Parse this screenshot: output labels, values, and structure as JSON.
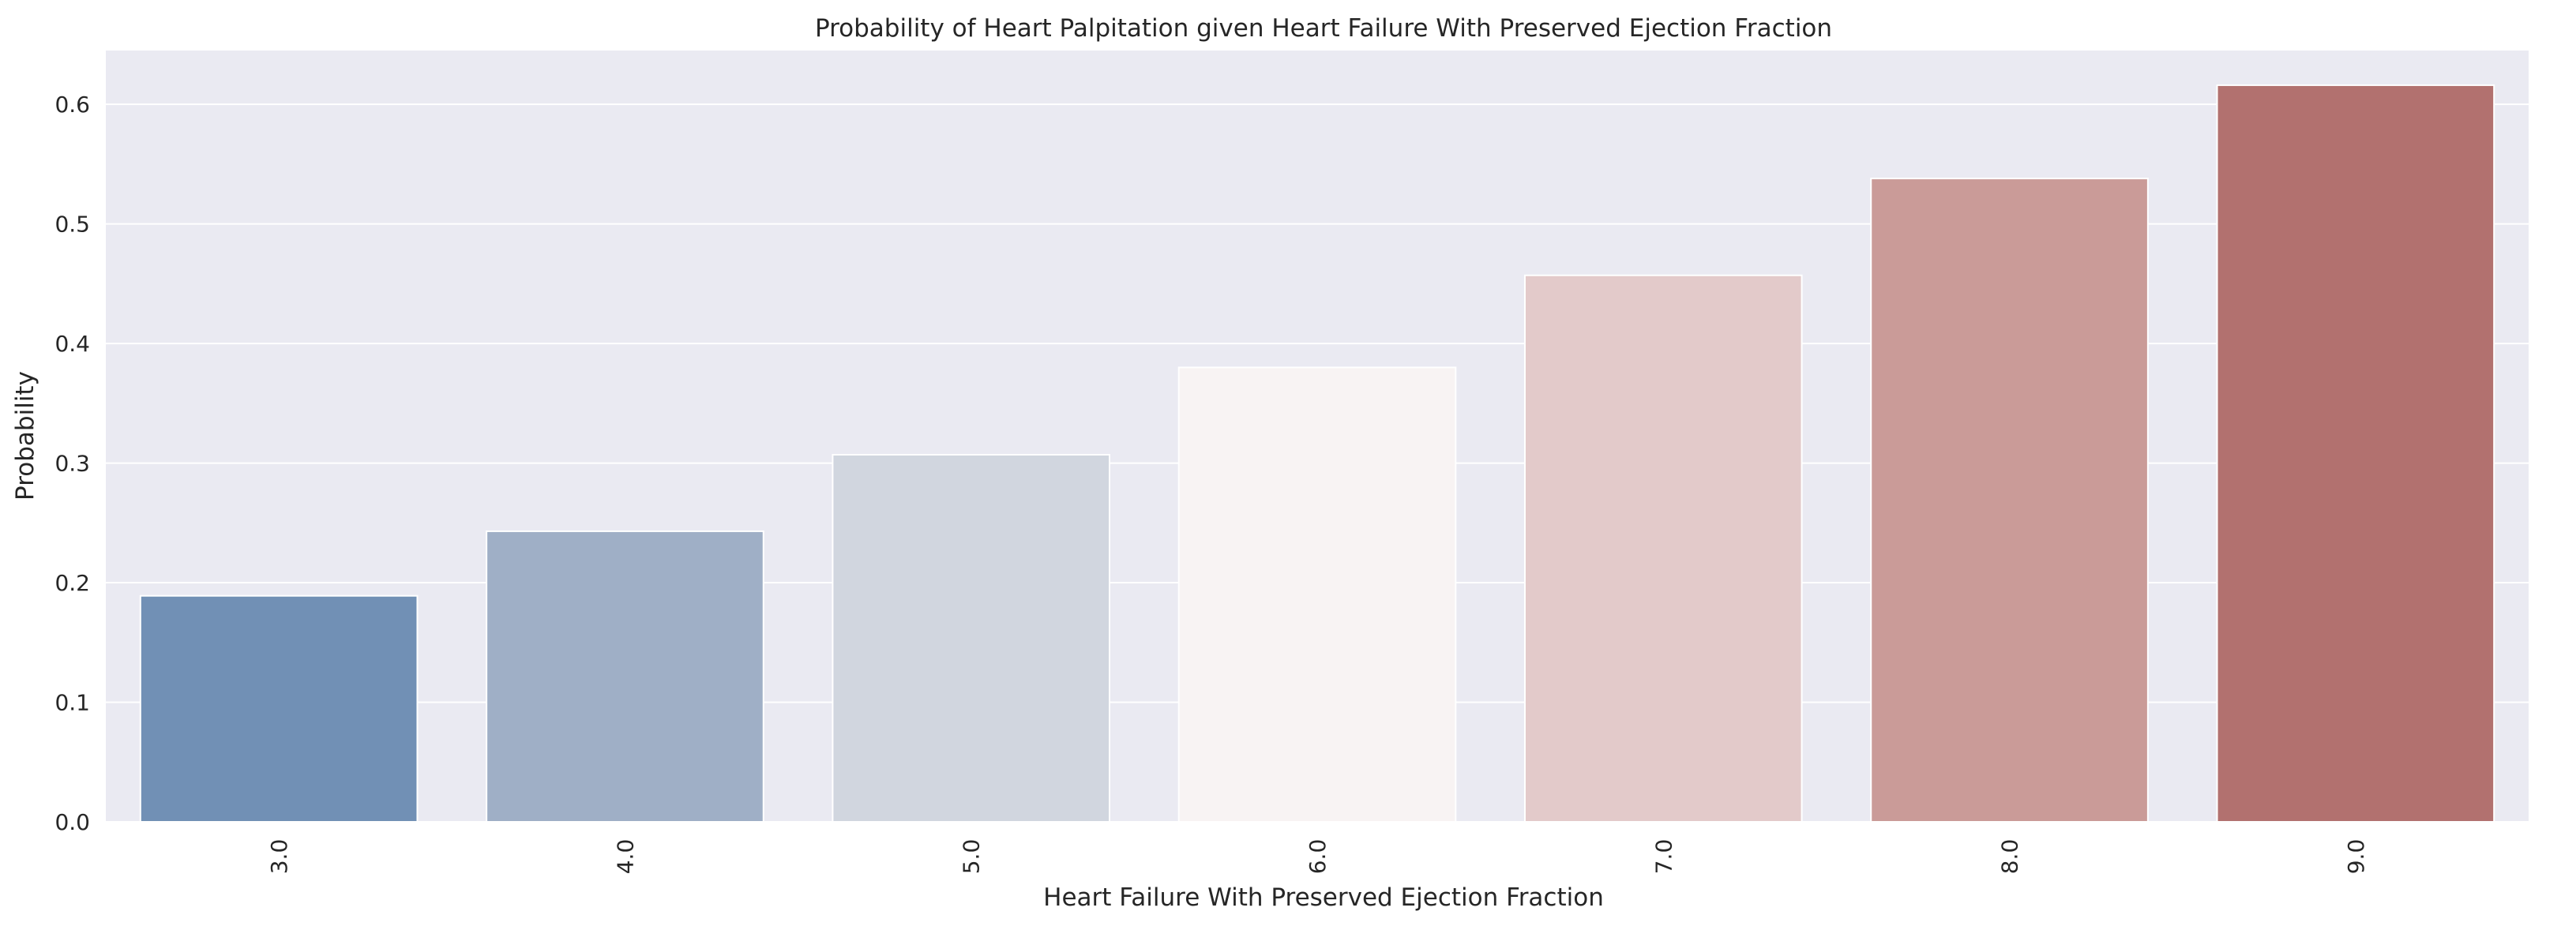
{
  "chart_data": {
    "type": "bar",
    "title": "Probability of Heart Palpitation given Heart Failure With Preserved Ejection Fraction",
    "xlabel": "Heart Failure With Preserved Ejection Fraction",
    "ylabel": "Probability",
    "categories": [
      "3.0",
      "4.0",
      "5.0",
      "6.0",
      "7.0",
      "8.0",
      "9.0"
    ],
    "values": [
      0.189,
      0.243,
      0.307,
      0.38,
      0.457,
      0.538,
      0.616
    ],
    "bar_colors": [
      "#7190b5",
      "#9fafc6",
      "#d1d6df",
      "#f8f3f3",
      "#e3caca",
      "#ca9b98",
      "#b2716f"
    ],
    "ylim": [
      0,
      0.645
    ],
    "yticks": [
      "0.0",
      "0.1",
      "0.2",
      "0.3",
      "0.4",
      "0.5",
      "0.6"
    ],
    "ytick_values": [
      0,
      0.1,
      0.2,
      0.3,
      0.4,
      0.5,
      0.6
    ],
    "grid": true,
    "background": "#eaeaf2",
    "grid_color": "#ffffff"
  }
}
